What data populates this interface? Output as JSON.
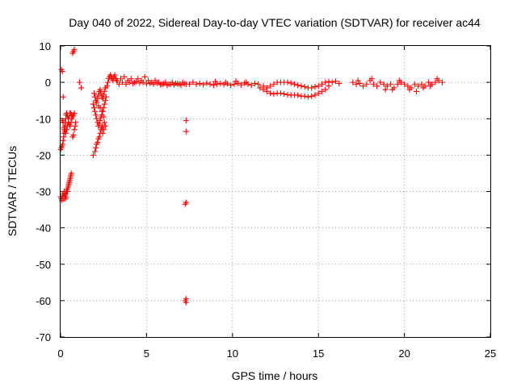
{
  "chart_data": {
    "type": "scatter",
    "title": "Day 040 of 2022, Sidereal Day-to-day VTEC variation (SDTVAR) for receiver ac44",
    "xlabel": "GPS time / hours",
    "ylabel": "SDTVAR / TECUs",
    "xlim": [
      0,
      25
    ],
    "ylim": [
      -70,
      10
    ],
    "xticks": [
      0,
      5,
      10,
      15,
      20,
      25
    ],
    "yticks": [
      10,
      0,
      -10,
      -20,
      -30,
      -40,
      -50,
      -60,
      -70
    ],
    "xtick_labels": [
      "0",
      "5",
      "10",
      "15",
      "20",
      "25"
    ],
    "ytick_labels": [
      "10",
      "0",
      "-10",
      "-20",
      "-30",
      "-40",
      "-50",
      "-60",
      "-70"
    ],
    "grid": true,
    "marker": "plus",
    "color": "#ff0000",
    "series": [
      {
        "name": "SDTVAR",
        "points": [
          [
            0.05,
            3.5
          ],
          [
            0.1,
            3.0
          ],
          [
            0.15,
            -4.0
          ],
          [
            0.0,
            -18.5
          ],
          [
            0.05,
            -18.0
          ],
          [
            0.08,
            -17.5
          ],
          [
            0.12,
            -17.0
          ],
          [
            0.15,
            -16.0
          ],
          [
            0.18,
            -15.0
          ],
          [
            0.2,
            -14.0
          ],
          [
            0.22,
            -13.0
          ],
          [
            0.25,
            -12.0
          ],
          [
            0.28,
            -11.0
          ],
          [
            0.3,
            -10.0
          ],
          [
            0.32,
            -9.0
          ],
          [
            0.1,
            -10.5
          ],
          [
            0.15,
            -11.0
          ],
          [
            0.2,
            -12.5
          ],
          [
            0.25,
            -13.5
          ],
          [
            0.3,
            -14.0
          ],
          [
            0.35,
            -13.0
          ],
          [
            0.4,
            -12.0
          ],
          [
            0.45,
            -11.0
          ],
          [
            0.5,
            -9.5
          ],
          [
            0.55,
            -8.5
          ],
          [
            0.6,
            -8.5
          ],
          [
            0.65,
            -9.0
          ],
          [
            0.35,
            -8.5
          ],
          [
            0.4,
            -9.0
          ],
          [
            0.45,
            -10.0
          ],
          [
            0.5,
            -11.5
          ],
          [
            0.55,
            -12.0
          ],
          [
            0.6,
            -11.0
          ],
          [
            0.65,
            -10.0
          ],
          [
            0.7,
            -9.5
          ],
          [
            0.75,
            -9.0
          ],
          [
            0.8,
            -8.5
          ],
          [
            0.7,
            -15.0
          ],
          [
            0.75,
            -14.5
          ],
          [
            0.8,
            -13.0
          ],
          [
            0.85,
            -12.0
          ],
          [
            0.88,
            -11.0
          ],
          [
            0.0,
            -31.5
          ],
          [
            0.05,
            -32.0
          ],
          [
            0.08,
            -32.5
          ],
          [
            0.12,
            -31.0
          ],
          [
            0.15,
            -30.5
          ],
          [
            0.18,
            -32.0
          ],
          [
            0.2,
            -31.5
          ],
          [
            0.22,
            -30.0
          ],
          [
            0.25,
            -31.0
          ],
          [
            0.28,
            -32.0
          ],
          [
            0.3,
            -30.5
          ],
          [
            0.32,
            -31.5
          ],
          [
            0.35,
            -30.0
          ],
          [
            0.38,
            -29.5
          ],
          [
            0.4,
            -30.0
          ],
          [
            0.42,
            -29.0
          ],
          [
            0.45,
            -28.5
          ],
          [
            0.48,
            -28.0
          ],
          [
            0.5,
            -27.5
          ],
          [
            0.52,
            -27.0
          ],
          [
            0.55,
            -26.5
          ],
          [
            0.58,
            -26.0
          ],
          [
            0.6,
            -25.5
          ],
          [
            0.62,
            -25.0
          ],
          [
            0.7,
            8.0
          ],
          [
            0.75,
            8.5
          ],
          [
            0.8,
            9.0
          ],
          [
            1.1,
            0.0
          ],
          [
            1.2,
            -1.5
          ],
          [
            1.9,
            -20.0
          ],
          [
            2.0,
            -19.0
          ],
          [
            2.05,
            -18.0
          ],
          [
            2.1,
            -17.0
          ],
          [
            2.15,
            -16.5
          ],
          [
            2.2,
            -15.5
          ],
          [
            2.25,
            -15.0
          ],
          [
            2.3,
            -14.0
          ],
          [
            2.35,
            -13.0
          ],
          [
            2.4,
            -12.5
          ],
          [
            2.45,
            -12.0
          ],
          [
            1.9,
            -6.0
          ],
          [
            1.95,
            -7.0
          ],
          [
            2.0,
            -8.0
          ],
          [
            2.05,
            -9.0
          ],
          [
            2.1,
            -10.0
          ],
          [
            2.15,
            -11.0
          ],
          [
            2.2,
            -12.0
          ],
          [
            2.25,
            -11.5
          ],
          [
            2.3,
            -10.5
          ],
          [
            2.35,
            -9.5
          ],
          [
            2.4,
            -9.0
          ],
          [
            2.45,
            -8.0
          ],
          [
            2.5,
            -7.0
          ],
          [
            2.55,
            -6.0
          ],
          [
            2.6,
            -5.0
          ],
          [
            2.65,
            -4.0
          ],
          [
            1.95,
            -3.0
          ],
          [
            2.0,
            -4.0
          ],
          [
            2.05,
            -5.0
          ],
          [
            2.1,
            -5.5
          ],
          [
            2.15,
            -4.5
          ],
          [
            2.2,
            -3.5
          ],
          [
            2.25,
            -2.5
          ],
          [
            2.3,
            -2.0
          ],
          [
            2.35,
            -3.0
          ],
          [
            2.4,
            -4.0
          ],
          [
            2.45,
            -4.5
          ],
          [
            2.5,
            -3.5
          ],
          [
            2.55,
            -2.5
          ],
          [
            2.6,
            -1.5
          ],
          [
            2.2,
            -6.5
          ],
          [
            2.3,
            -7.0
          ],
          [
            2.4,
            -8.0
          ],
          [
            2.5,
            -9.5
          ],
          [
            2.55,
            -11.0
          ],
          [
            2.6,
            -12.0
          ],
          [
            2.5,
            -13.0
          ],
          [
            2.45,
            -14.0
          ],
          [
            2.7,
            -1.0
          ],
          [
            2.75,
            0.0
          ],
          [
            2.8,
            1.0
          ],
          [
            2.85,
            1.5
          ],
          [
            2.9,
            2.0
          ],
          [
            2.95,
            1.5
          ],
          [
            3.0,
            1.0
          ],
          [
            3.05,
            0.5
          ],
          [
            3.1,
            1.5
          ],
          [
            3.15,
            2.0
          ],
          [
            3.2,
            1.0
          ],
          [
            3.25,
            0.5
          ],
          [
            3.3,
            0.5
          ],
          [
            3.5,
            1.0
          ],
          [
            3.7,
            1.5
          ],
          [
            3.9,
            0.5
          ],
          [
            4.1,
            1.0
          ],
          [
            4.3,
            0.0
          ],
          [
            4.5,
            1.0
          ],
          [
            4.7,
            0.5
          ],
          [
            4.9,
            1.5
          ],
          [
            5.1,
            0.5
          ],
          [
            5.3,
            0.0
          ],
          [
            5.5,
            0.5
          ],
          [
            5.7,
            0.0
          ],
          [
            5.9,
            -0.5
          ],
          [
            6.1,
            0.0
          ],
          [
            6.3,
            -0.5
          ],
          [
            6.5,
            0.0
          ],
          [
            6.7,
            -0.3
          ],
          [
            6.9,
            -0.5
          ],
          [
            7.1,
            0.0
          ],
          [
            7.3,
            -0.5
          ],
          [
            3.4,
            -0.5
          ],
          [
            3.6,
            0.0
          ],
          [
            3.8,
            -0.5
          ],
          [
            4.0,
            0.0
          ],
          [
            4.2,
            -0.3
          ],
          [
            4.4,
            0.2
          ],
          [
            4.6,
            -0.2
          ],
          [
            4.8,
            0.0
          ],
          [
            5.0,
            -0.4
          ],
          [
            5.2,
            -0.2
          ],
          [
            5.4,
            -0.5
          ],
          [
            5.6,
            -0.2
          ],
          [
            5.8,
            -0.6
          ],
          [
            6.0,
            -0.4
          ],
          [
            6.2,
            -0.8
          ],
          [
            6.4,
            -0.5
          ],
          [
            6.6,
            -0.7
          ],
          [
            6.8,
            -0.4
          ],
          [
            7.0,
            -0.8
          ],
          [
            7.2,
            -0.4
          ],
          [
            7.3,
            -10.5
          ],
          [
            7.3,
            -13.5
          ],
          [
            7.3,
            -33.0
          ],
          [
            7.25,
            -33.5
          ],
          [
            7.3,
            -59.5
          ],
          [
            7.25,
            -60.0
          ],
          [
            7.3,
            -60.5
          ],
          [
            7.5,
            -0.5
          ],
          [
            7.7,
            0.0
          ],
          [
            7.9,
            -0.5
          ],
          [
            8.1,
            -0.3
          ],
          [
            8.3,
            -0.6
          ],
          [
            8.5,
            -0.2
          ],
          [
            8.7,
            -0.5
          ],
          [
            8.9,
            -0.8
          ],
          [
            9.1,
            -0.5
          ],
          [
            9.3,
            -0.3
          ],
          [
            9.5,
            -0.6
          ],
          [
            9.7,
            -0.4
          ],
          [
            9.9,
            -0.8
          ],
          [
            10.1,
            -0.5
          ],
          [
            10.3,
            -0.3
          ],
          [
            10.5,
            -0.7
          ],
          [
            10.7,
            -0.2
          ],
          [
            10.9,
            -0.5
          ],
          [
            11.1,
            -0.8
          ],
          [
            11.3,
            -0.3
          ],
          [
            9.0,
            0.2
          ],
          [
            9.6,
            0.0
          ],
          [
            10.2,
            0.3
          ],
          [
            10.8,
            0.0
          ],
          [
            11.5,
            -0.5
          ],
          [
            11.8,
            -1.0
          ],
          [
            12.0,
            -1.5
          ],
          [
            12.2,
            -1.0
          ],
          [
            12.4,
            -0.5
          ],
          [
            12.6,
            0.0
          ],
          [
            12.8,
            0.0
          ],
          [
            13.0,
            0.0
          ],
          [
            13.2,
            0.0
          ],
          [
            13.4,
            -0.2
          ],
          [
            13.6,
            -0.5
          ],
          [
            13.8,
            -0.8
          ],
          [
            14.0,
            -1.0
          ],
          [
            14.2,
            -1.2
          ],
          [
            14.4,
            -1.5
          ],
          [
            14.6,
            -1.5
          ],
          [
            14.8,
            -1.2
          ],
          [
            15.0,
            -1.0
          ],
          [
            15.2,
            -0.5
          ],
          [
            15.4,
            0.0
          ],
          [
            15.6,
            0.2
          ],
          [
            11.6,
            -1.5
          ],
          [
            11.8,
            -2.0
          ],
          [
            12.0,
            -2.5
          ],
          [
            12.2,
            -3.0
          ],
          [
            12.4,
            -3.2
          ],
          [
            12.6,
            -3.0
          ],
          [
            12.8,
            -3.0
          ],
          [
            13.0,
            -3.2
          ],
          [
            13.2,
            -3.4
          ],
          [
            13.4,
            -3.5
          ],
          [
            13.6,
            -3.5
          ],
          [
            13.8,
            -3.5
          ],
          [
            14.0,
            -3.8
          ],
          [
            14.2,
            -3.8
          ],
          [
            14.4,
            -4.0
          ],
          [
            14.6,
            -3.8
          ],
          [
            14.8,
            -3.5
          ],
          [
            15.0,
            -3.0
          ],
          [
            15.2,
            -2.5
          ],
          [
            15.4,
            -2.0
          ],
          [
            15.6,
            -1.0
          ],
          [
            15.8,
            0.0
          ],
          [
            16.0,
            0.3
          ],
          [
            16.2,
            -0.3
          ],
          [
            17.0,
            0.0
          ],
          [
            17.2,
            -0.5
          ],
          [
            17.4,
            -0.3
          ],
          [
            17.6,
            -1.0
          ],
          [
            17.8,
            -0.5
          ],
          [
            18.0,
            0.5
          ],
          [
            18.2,
            -0.5
          ],
          [
            18.4,
            -1.0
          ],
          [
            18.6,
            0.0
          ],
          [
            18.8,
            -0.5
          ],
          [
            19.0,
            -1.0
          ],
          [
            19.2,
            -0.5
          ],
          [
            19.4,
            -1.5
          ],
          [
            19.6,
            -0.5
          ],
          [
            19.8,
            0.0
          ],
          [
            20.0,
            -0.5
          ],
          [
            20.2,
            -1.0
          ],
          [
            20.4,
            -1.5
          ],
          [
            20.6,
            -0.5
          ],
          [
            20.8,
            -1.0
          ],
          [
            21.0,
            -0.5
          ],
          [
            21.2,
            -1.0
          ],
          [
            21.4,
            0.0
          ],
          [
            21.6,
            -0.5
          ],
          [
            21.8,
            0.0
          ],
          [
            22.0,
            0.5
          ],
          [
            22.2,
            0.0
          ],
          [
            18.9,
            -2.0
          ],
          [
            19.3,
            -2.0
          ],
          [
            20.3,
            -2.0
          ],
          [
            20.7,
            -2.5
          ],
          [
            21.1,
            -1.5
          ],
          [
            21.5,
            -1.0
          ],
          [
            17.3,
            0.5
          ],
          [
            18.1,
            1.0
          ],
          [
            19.7,
            0.5
          ],
          [
            21.9,
            1.0
          ]
        ]
      }
    ]
  }
}
